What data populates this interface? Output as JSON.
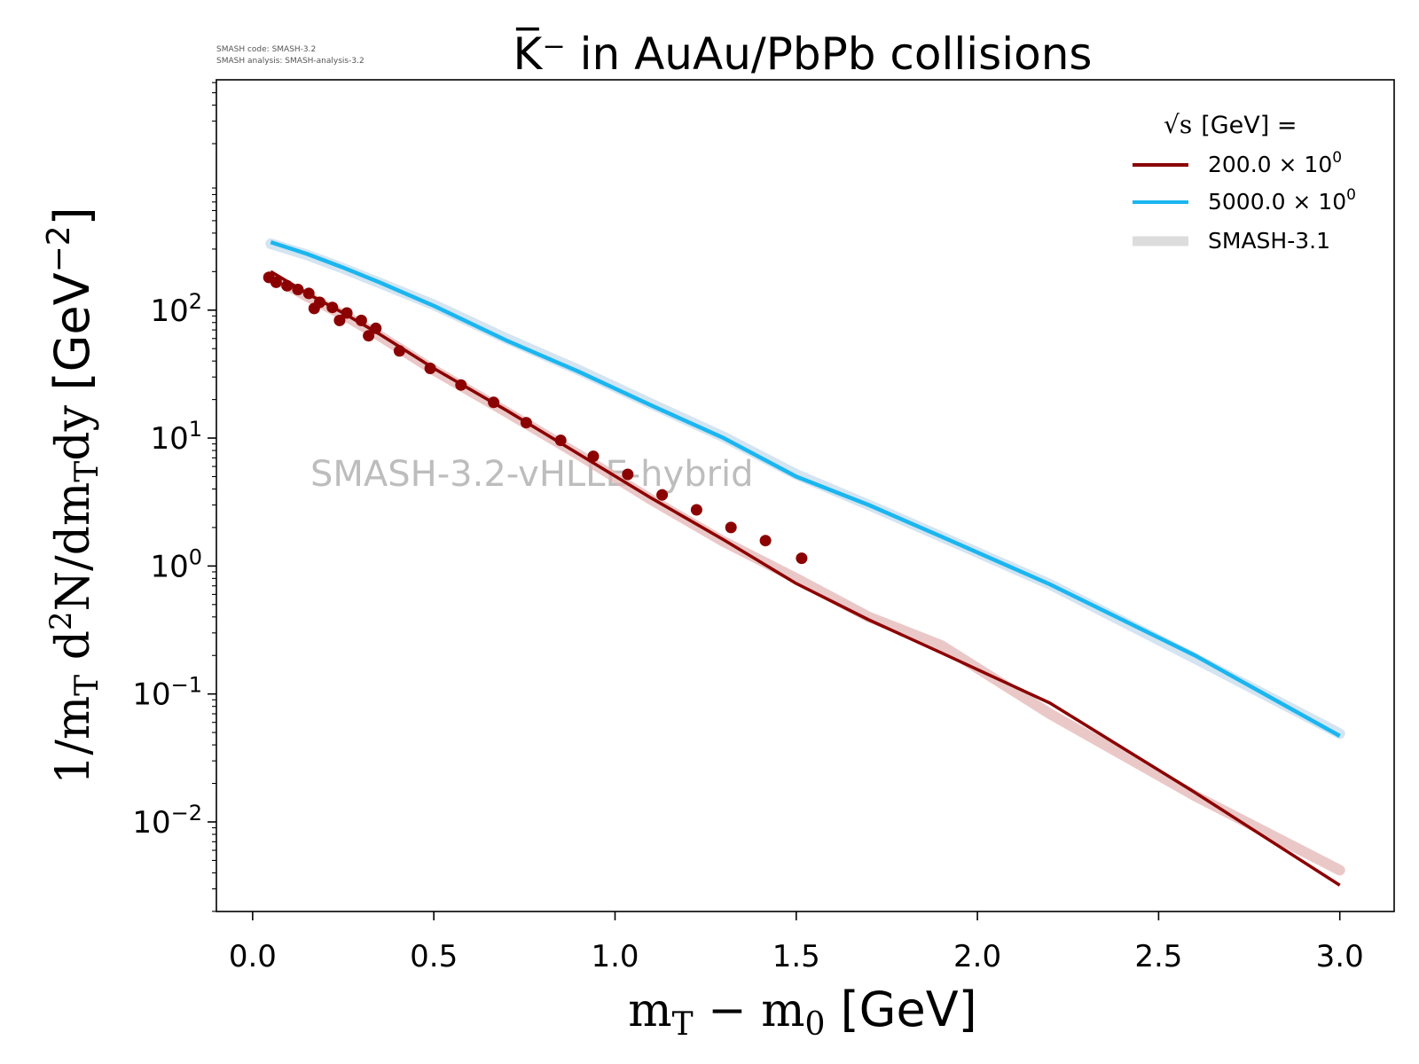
{
  "header": {
    "meta_line1": "SMASH code:      SMASH-3.2",
    "meta_line2": "SMASH analysis: SMASH-analysis-3.2"
  },
  "chart_data": {
    "type": "line",
    "title": "K̅⁻ in AuAu/PbPb collisions",
    "xlabel": "m_T − m_0 [GeV]",
    "ylabel": "1/m_T d²N/dm_T dy [GeV⁻²]",
    "xlim": [
      -0.1,
      3.15
    ],
    "ylim_log10": [
      -2.7,
      3.8
    ],
    "yscale": "log",
    "grid": false,
    "legend_position": "top-right",
    "watermark": "SMASH-3.2-vHLLE-hybrid",
    "x_ticks": [
      "0.0",
      "0.5",
      "1.0",
      "1.5",
      "2.0",
      "2.5",
      "3.0"
    ],
    "x_tick_values": [
      0.0,
      0.5,
      1.0,
      1.5,
      2.0,
      2.5,
      3.0
    ],
    "y_ticks": [
      {
        "value": 100,
        "base": "10",
        "exp": "2"
      },
      {
        "value": 10,
        "base": "10",
        "exp": "1"
      },
      {
        "value": 1,
        "base": "10",
        "exp": "0"
      },
      {
        "value": 0.1,
        "base": "10",
        "exp": "−1"
      },
      {
        "value": 0.01,
        "base": "10",
        "exp": "−2"
      }
    ],
    "legend": {
      "title_prefix": "√s",
      "title_suffix": "[GeV] =",
      "entries": [
        {
          "label": "200.0 × 10",
          "exp": "0",
          "color": "#8b0000"
        },
        {
          "label": "5000.0 × 10",
          "exp": "0",
          "color": "#1ab6f0"
        },
        {
          "label": "SMASH-3.1",
          "exp": "",
          "color": "#dcdcdc"
        }
      ]
    },
    "series": [
      {
        "name": "200.0 × 10⁰",
        "color": "#8b0000",
        "x": [
          0.05,
          0.15,
          0.25,
          0.35,
          0.5,
          0.7,
          0.9,
          1.1,
          1.3,
          1.5,
          1.7,
          1.9,
          2.2,
          2.6,
          3.0
        ],
        "y": [
          200,
          135,
          95,
          65,
          35,
          16.5,
          7.5,
          3.4,
          1.6,
          0.73,
          0.38,
          0.21,
          0.085,
          0.017,
          0.0032
        ]
      },
      {
        "name": "5000.0 × 10⁰",
        "color": "#1ab6f0",
        "x": [
          0.05,
          0.15,
          0.25,
          0.35,
          0.5,
          0.7,
          0.9,
          1.1,
          1.3,
          1.5,
          1.7,
          1.9,
          2.2,
          2.6,
          3.0
        ],
        "y": [
          340,
          275,
          215,
          165,
          108,
          58,
          33,
          18,
          10,
          5.0,
          3.0,
          1.7,
          0.72,
          0.2,
          0.047
        ]
      }
    ],
    "reference_bands": [
      {
        "name": "SMASH-3.1 (200)",
        "color": "#e4b6b6",
        "x": [
          0.05,
          0.15,
          0.25,
          0.35,
          0.5,
          0.7,
          0.9,
          1.1,
          1.3,
          1.5,
          1.7,
          1.9,
          2.2,
          2.6,
          3.0
        ],
        "y": [
          185,
          128,
          92,
          63,
          34,
          16,
          7.4,
          3.3,
          1.55,
          0.8,
          0.4,
          0.24,
          0.07,
          0.016,
          0.0042
        ]
      },
      {
        "name": "SMASH-3.1 (5000)",
        "color": "#c6dbec",
        "x": [
          0.05,
          0.15,
          0.25,
          0.35,
          0.5,
          0.7,
          0.9,
          1.1,
          1.3,
          1.5,
          1.7,
          1.9,
          2.2,
          2.6,
          3.0
        ],
        "y": [
          330,
          270,
          212,
          163,
          110,
          60,
          34,
          18.5,
          10.2,
          5.2,
          3.0,
          1.7,
          0.72,
          0.19,
          0.049
        ]
      }
    ],
    "experimental_points": {
      "color": "#8b0000",
      "x": [
        0.045,
        0.065,
        0.095,
        0.125,
        0.155,
        0.17,
        0.185,
        0.22,
        0.24,
        0.26,
        0.3,
        0.32,
        0.34,
        0.405,
        0.49,
        0.575,
        0.665,
        0.755,
        0.85,
        0.94,
        1.035,
        1.13,
        1.225,
        1.32,
        1.415,
        1.515
      ],
      "y": [
        180,
        165,
        155,
        145,
        135,
        103,
        115,
        105,
        83,
        95,
        83,
        63,
        72,
        48,
        35,
        26,
        19,
        13.2,
        9.6,
        7.2,
        5.2,
        3.6,
        2.75,
        2.0,
        1.58,
        1.15
      ]
    }
  }
}
